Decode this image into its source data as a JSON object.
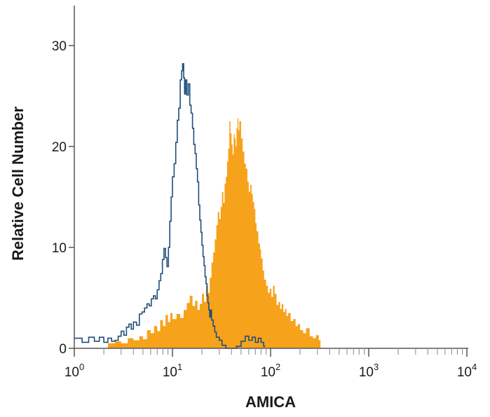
{
  "chart_data": {
    "type": "area",
    "xlabel": "AMICA",
    "ylabel": "Relative Cell Number",
    "xscale": "log",
    "xlim": [
      1,
      10000
    ],
    "ylim": [
      0,
      33
    ],
    "xtick_labels": [
      {
        "base": "10",
        "exp": "0"
      },
      {
        "base": "10",
        "exp": "1"
      },
      {
        "base": "10",
        "exp": "2"
      },
      {
        "base": "10",
        "exp": "3"
      },
      {
        "base": "10",
        "exp": "4"
      }
    ],
    "ytick_labels": [
      "0",
      "10",
      "20",
      "30"
    ],
    "series": [
      {
        "style": "filled",
        "color": "#f7a21b",
        "points": [
          [
            2.2,
            0.5
          ],
          [
            2.6,
            0.7
          ],
          [
            3.0,
            0.5
          ],
          [
            3.5,
            1.0
          ],
          [
            4.0,
            0.8
          ],
          [
            4.6,
            1.2
          ],
          [
            5.0,
            0.9
          ],
          [
            5.5,
            1.8
          ],
          [
            6.0,
            1.5
          ],
          [
            6.5,
            2.2
          ],
          [
            7.0,
            1.7
          ],
          [
            7.5,
            2.8
          ],
          [
            8.0,
            2.2
          ],
          [
            8.5,
            3.3
          ],
          [
            9.0,
            2.6
          ],
          [
            9.5,
            3.5
          ],
          [
            10.0,
            2.9
          ],
          [
            11.0,
            3.4
          ],
          [
            12.0,
            3.0
          ],
          [
            13.0,
            3.8
          ],
          [
            14.0,
            4.5
          ],
          [
            15.0,
            5.2
          ],
          [
            16.0,
            4.2
          ],
          [
            17.0,
            4.7
          ],
          [
            18.0,
            3.8
          ],
          [
            19.0,
            4.4
          ],
          [
            20.0,
            5.4
          ],
          [
            21.0,
            4.6
          ],
          [
            22.0,
            6.2
          ],
          [
            23.0,
            5.5
          ],
          [
            24.0,
            7.0
          ],
          [
            25.0,
            8.5
          ],
          [
            26.0,
            9.5
          ],
          [
            27.0,
            10.8
          ],
          [
            28.0,
            12.2
          ],
          [
            29.0,
            13.5
          ],
          [
            30.0,
            12.8
          ],
          [
            31.0,
            14.0
          ],
          [
            32.0,
            15.5
          ],
          [
            33.0,
            14.4
          ],
          [
            34.0,
            16.3
          ],
          [
            35.0,
            17.0
          ],
          [
            36.0,
            18.5
          ],
          [
            37.0,
            19.8
          ],
          [
            38.0,
            22.5
          ],
          [
            39.0,
            21.3
          ],
          [
            40.0,
            20.2
          ],
          [
            41.0,
            19.2
          ],
          [
            42.0,
            21.2
          ],
          [
            43.0,
            20.8
          ],
          [
            44.0,
            20.0
          ],
          [
            45.0,
            21.8
          ],
          [
            46.0,
            22.8
          ],
          [
            47.0,
            21.6
          ],
          [
            48.0,
            22.5
          ],
          [
            50.0,
            20.8
          ],
          [
            52.0,
            19.5
          ],
          [
            54.0,
            18.3
          ],
          [
            56.0,
            17.8
          ],
          [
            58.0,
            16.5
          ],
          [
            60.0,
            15.5
          ],
          [
            62.0,
            16.2
          ],
          [
            64.0,
            15.3
          ],
          [
            66.0,
            14.5
          ],
          [
            68.0,
            13.8
          ],
          [
            70.0,
            12.4
          ],
          [
            72.0,
            11.6
          ],
          [
            75.0,
            10.4
          ],
          [
            78.0,
            9.8
          ],
          [
            80.0,
            8.9
          ],
          [
            83.0,
            7.7
          ],
          [
            86.0,
            6.8
          ],
          [
            90.0,
            6.2
          ],
          [
            94.0,
            5.5
          ],
          [
            98.0,
            5.9
          ],
          [
            102.0,
            5.1
          ],
          [
            106.0,
            6.2
          ],
          [
            110.0,
            5.4
          ],
          [
            115.0,
            4.3
          ],
          [
            120.0,
            4.6
          ],
          [
            125.0,
            3.9
          ],
          [
            130.0,
            4.4
          ],
          [
            135.0,
            3.6
          ],
          [
            140.0,
            3.9
          ],
          [
            145.0,
            3.2
          ],
          [
            150.0,
            3.5
          ],
          [
            160.0,
            2.7
          ],
          [
            170.0,
            2.9
          ],
          [
            180.0,
            2.2
          ],
          [
            190.0,
            2.4
          ],
          [
            200.0,
            1.8
          ],
          [
            215.0,
            1.5
          ],
          [
            230.0,
            2.0
          ],
          [
            250.0,
            1.2
          ],
          [
            270.0,
            1.0
          ],
          [
            290.0,
            1.3
          ],
          [
            310.0,
            0.8
          ]
        ]
      },
      {
        "style": "outline",
        "color": "#1f4e7a",
        "points": [
          [
            1.0,
            1.0
          ],
          [
            1.2,
            0.6
          ],
          [
            1.4,
            1.1
          ],
          [
            1.6,
            0.7
          ],
          [
            1.8,
            1.1
          ],
          [
            2.0,
            0.6
          ],
          [
            2.2,
            1.0
          ],
          [
            2.4,
            0.7
          ],
          [
            2.6,
            0.8
          ],
          [
            2.8,
            1.2
          ],
          [
            3.0,
            1.7
          ],
          [
            3.2,
            1.3
          ],
          [
            3.4,
            2.1
          ],
          [
            3.6,
            2.4
          ],
          [
            3.8,
            1.9
          ],
          [
            4.0,
            2.6
          ],
          [
            4.3,
            2.3
          ],
          [
            4.6,
            3.4
          ],
          [
            4.9,
            3.6
          ],
          [
            5.2,
            4.0
          ],
          [
            5.5,
            4.4
          ],
          [
            5.8,
            4.2
          ],
          [
            6.1,
            4.9
          ],
          [
            6.4,
            5.2
          ],
          [
            6.7,
            4.9
          ],
          [
            7.0,
            5.8
          ],
          [
            7.3,
            6.7
          ],
          [
            7.6,
            7.4
          ],
          [
            7.9,
            8.8
          ],
          [
            8.2,
            9.9
          ],
          [
            8.5,
            9.0
          ],
          [
            8.8,
            8.1
          ],
          [
            9.1,
            10.0
          ],
          [
            9.4,
            12.6
          ],
          [
            9.7,
            15.0
          ],
          [
            10.0,
            17.0
          ],
          [
            10.4,
            18.3
          ],
          [
            10.8,
            20.4
          ],
          [
            11.2,
            22.6
          ],
          [
            11.6,
            23.8
          ],
          [
            12.0,
            26.6
          ],
          [
            12.4,
            27.5
          ],
          [
            12.7,
            28.2
          ],
          [
            13.0,
            26.8
          ],
          [
            13.3,
            25.2
          ],
          [
            13.6,
            26.6
          ],
          [
            14.0,
            25.1
          ],
          [
            14.5,
            26.2
          ],
          [
            15.0,
            24.1
          ],
          [
            15.5,
            23.3
          ],
          [
            16.0,
            21.8
          ],
          [
            16.5,
            20.2
          ],
          [
            17.0,
            19.3
          ],
          [
            17.5,
            17.8
          ],
          [
            18.0,
            16.5
          ],
          [
            18.5,
            14.2
          ],
          [
            19.0,
            12.7
          ],
          [
            19.5,
            11.5
          ],
          [
            20.0,
            10.2
          ],
          [
            20.5,
            9.1
          ],
          [
            21.0,
            8.2
          ],
          [
            21.5,
            7.1
          ],
          [
            22.0,
            6.4
          ],
          [
            22.5,
            5.2
          ],
          [
            23.0,
            4.5
          ],
          [
            23.5,
            3.8
          ],
          [
            24.0,
            3.1
          ],
          [
            24.5,
            3.8
          ],
          [
            25.0,
            2.8
          ],
          [
            26.0,
            2.2
          ],
          [
            27.0,
            1.6
          ],
          [
            28.0,
            1.1
          ],
          [
            30.0,
            0.8
          ],
          [
            32.0,
            0.3
          ],
          [
            35.0,
            0.0
          ],
          [
            45.0,
            0.2
          ],
          [
            50.0,
            0.7
          ],
          [
            55.0,
            1.2
          ],
          [
            60.0,
            0.8
          ],
          [
            65.0,
            1.1
          ],
          [
            70.0,
            0.6
          ],
          [
            75.0,
            1.0
          ],
          [
            80.0,
            0.6
          ],
          [
            85.0,
            0.2
          ]
        ]
      }
    ]
  }
}
